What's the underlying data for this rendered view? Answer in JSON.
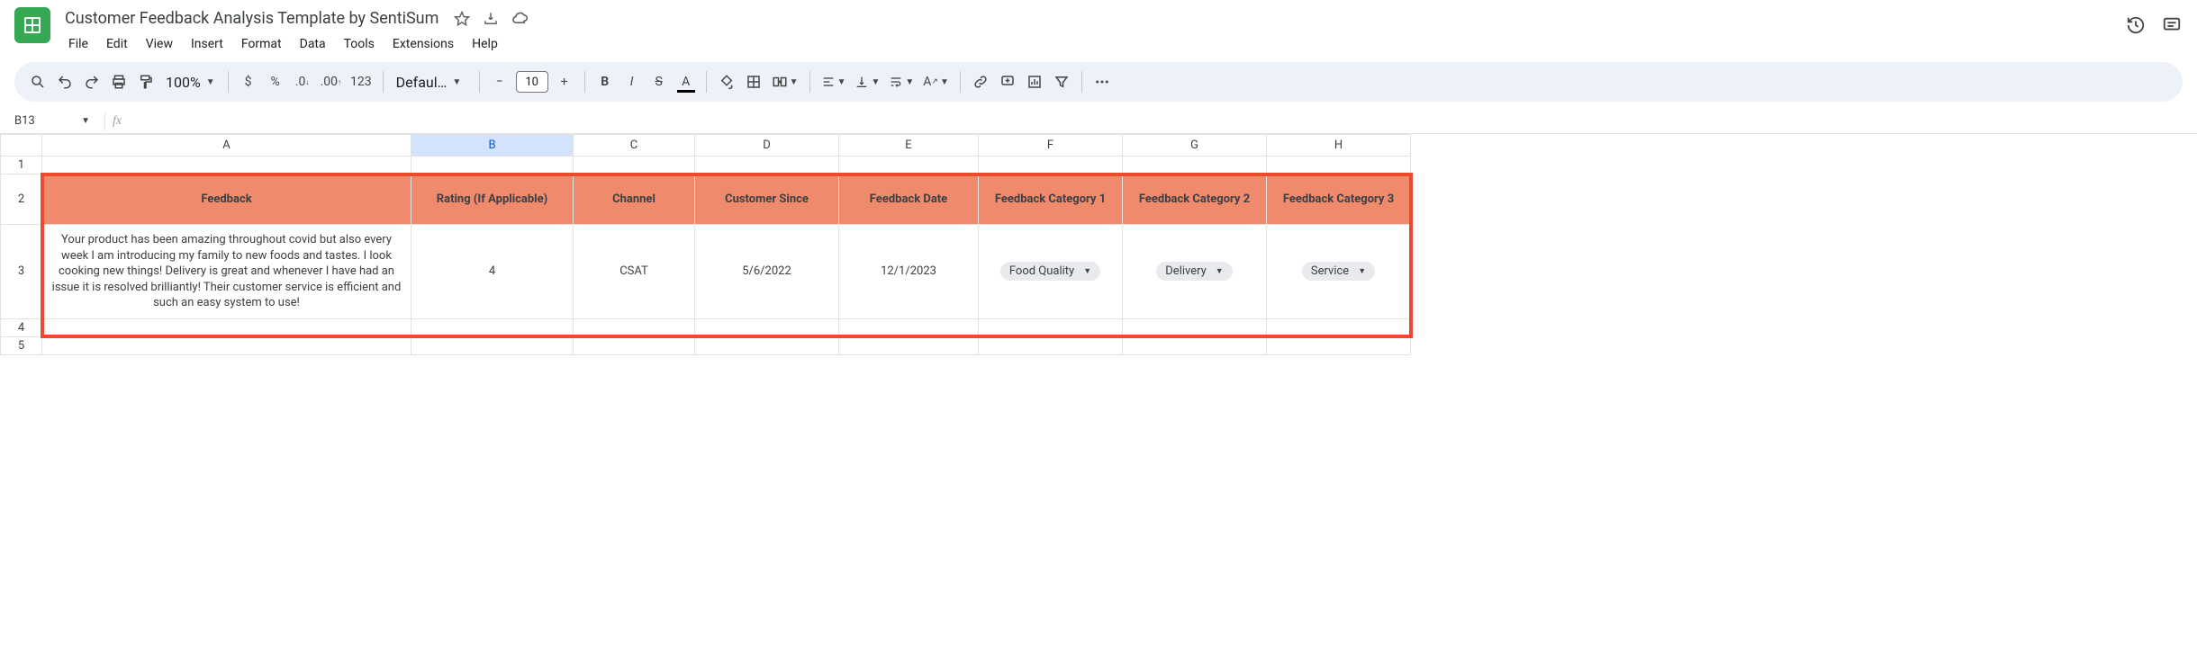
{
  "doc": {
    "title": "Customer Feedback Analysis Template by SentiSum"
  },
  "menus": [
    "File",
    "Edit",
    "View",
    "Insert",
    "Format",
    "Data",
    "Tools",
    "Extensions",
    "Help"
  ],
  "toolbar": {
    "zoom": "100%",
    "font_name": "Defaul…",
    "font_size": "10"
  },
  "namebox": {
    "cell_ref": "B13"
  },
  "columns": {
    "labels": [
      "A",
      "B",
      "C",
      "D",
      "E",
      "F",
      "G",
      "H"
    ],
    "selected": "B"
  },
  "row_labels": [
    "1",
    "2",
    "3",
    "4",
    "5"
  ],
  "table": {
    "header_bg": "#f08a6c",
    "header_fg": "#ffffff",
    "headers": [
      "Feedback",
      "Rating (If Applicable)",
      "Channel",
      "Customer Since",
      "Feedback Date",
      "Feedback Category 1",
      "Feedback Category 2",
      "Feedback Category 3"
    ],
    "row": {
      "feedback": "Your product has been amazing throughout covid but also every week I am introducing my family to new foods and tastes. I look cooking new things! Delivery is great and whenever I have had an issue it is resolved brilliantly! Their customer service is efficient and such an easy system to use!",
      "rating": "4",
      "channel": "CSAT",
      "customer_since": "5/6/2022",
      "feedback_date": "12/1/2023",
      "cat1": "Food Quality",
      "cat2": "Delivery",
      "cat3": "Service"
    }
  },
  "highlight": {
    "border_color": "#eb4a2c"
  }
}
